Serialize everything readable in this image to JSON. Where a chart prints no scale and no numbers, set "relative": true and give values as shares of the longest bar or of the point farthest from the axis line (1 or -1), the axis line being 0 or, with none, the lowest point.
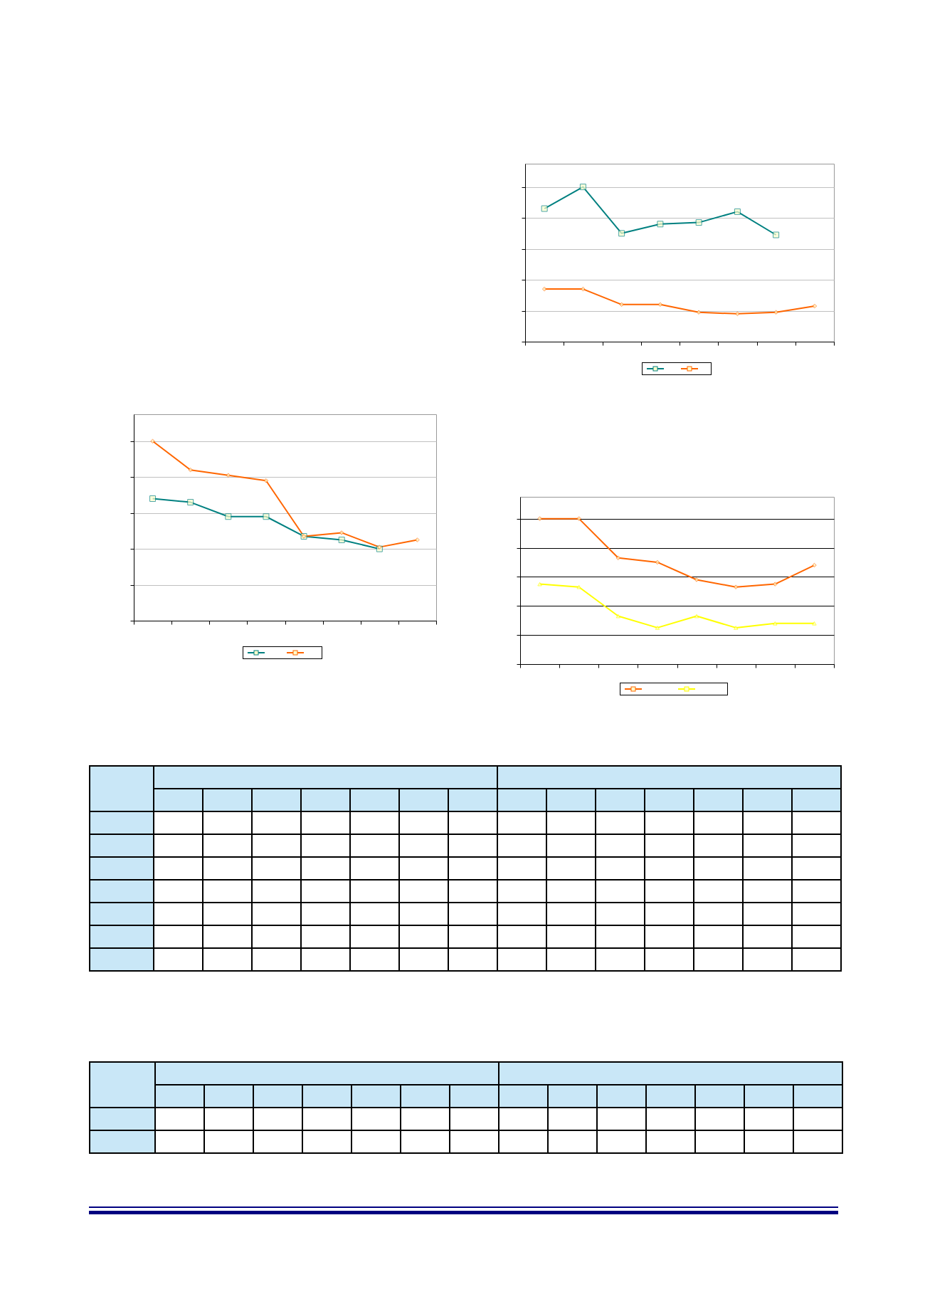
{
  "chart_data": [
    {
      "type": "line",
      "relative": true,
      "categories": [
        null,
        null,
        null,
        null,
        null,
        null,
        null,
        null
      ],
      "grid": "y",
      "series": [
        {
          "color": "#008080",
          "marker": "square",
          "values": [
            0.86,
            1,
            0.7,
            0.76,
            0.77,
            0.84,
            0.69,
            null
          ]
        },
        {
          "color": "#ff6600",
          "marker": "diamond",
          "values": [
            0.34,
            0.34,
            0.24,
            0.24,
            0.19,
            0.18,
            0.19,
            0.23
          ]
        }
      ]
    },
    {
      "type": "line",
      "relative": true,
      "categories": [
        null,
        null,
        null,
        null,
        null,
        null,
        null,
        null
      ],
      "grid": "y",
      "series": [
        {
          "color": "#008080",
          "marker": "square",
          "values": [
            0.68,
            0.66,
            0.58,
            0.58,
            0.47,
            0.45,
            0.4,
            null
          ]
        },
        {
          "color": "#ff6600",
          "marker": "diamond",
          "values": [
            1,
            0.84,
            0.81,
            0.78,
            0.47,
            0.49,
            0.41,
            0.45
          ]
        }
      ]
    },
    {
      "type": "line",
      "relative": true,
      "categories": [
        null,
        null,
        null,
        null,
        null,
        null,
        null,
        null
      ],
      "grid": "y",
      "series": [
        {
          "color": "#ff6600",
          "marker": "diamond",
          "values": [
            1,
            1,
            0.73,
            0.7,
            0.58,
            0.53,
            0.55,
            0.68
          ]
        },
        {
          "color": "#ffff00",
          "marker": "triangle",
          "values": [
            0.55,
            0.53,
            0.33,
            0.25,
            0.33,
            0.25,
            0.28,
            0.28
          ]
        }
      ]
    }
  ]
}
